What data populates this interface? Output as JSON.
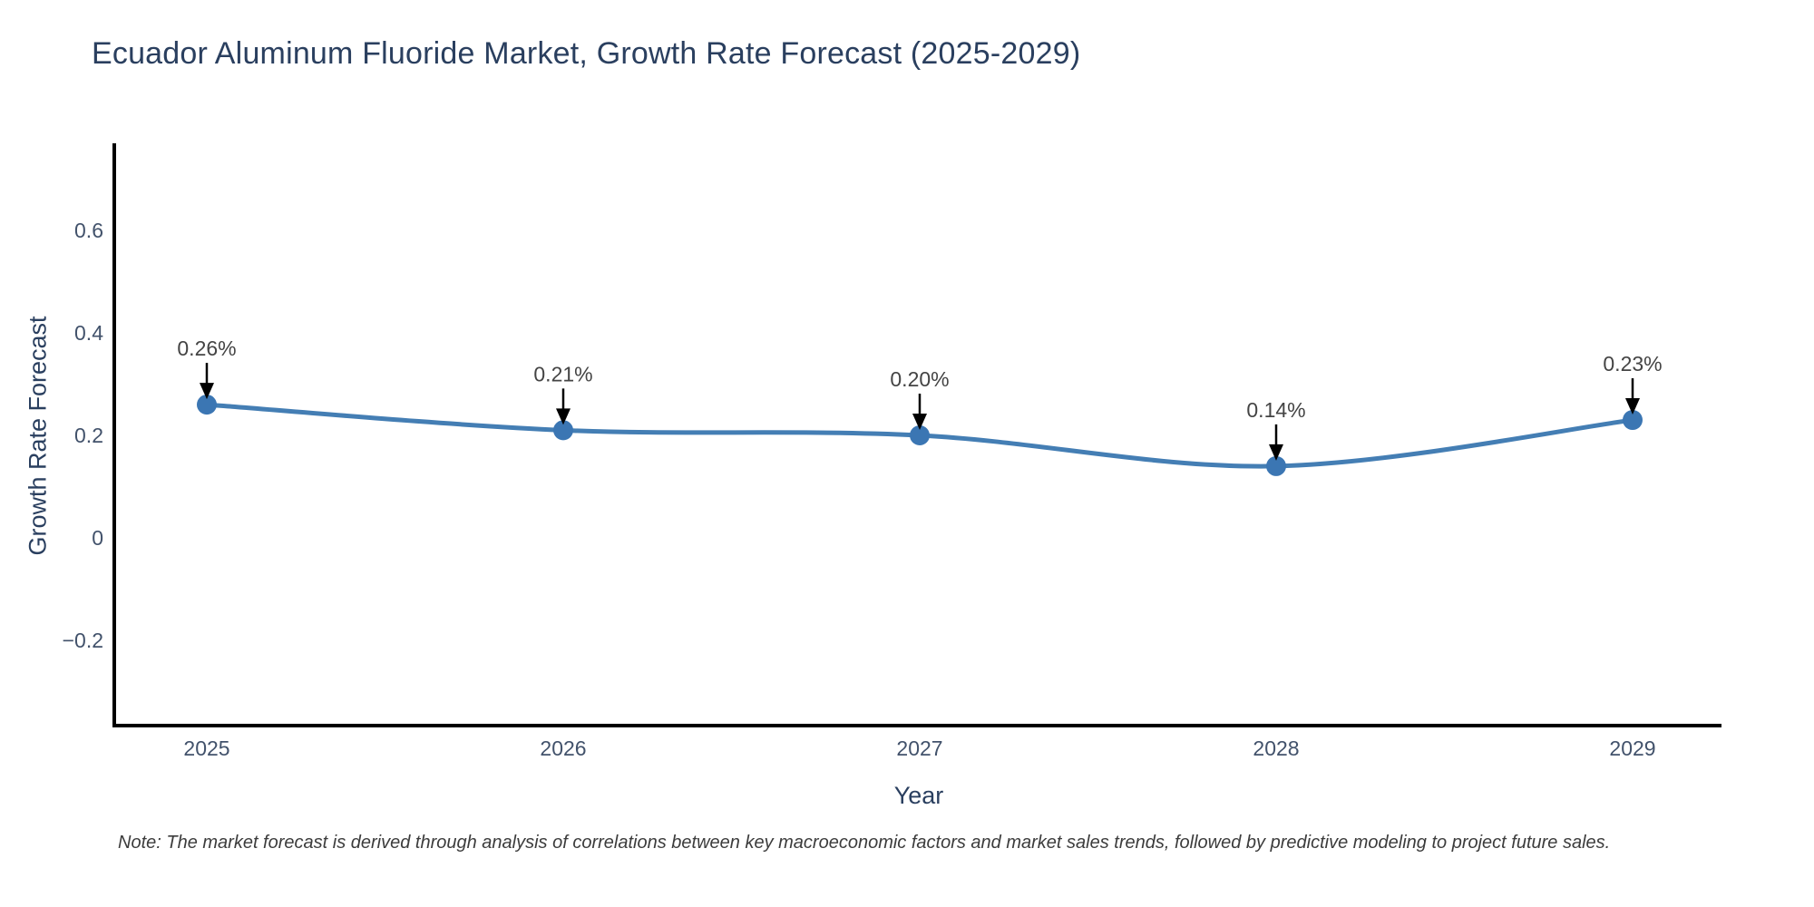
{
  "chart_data": {
    "type": "line",
    "title": "Ecuador Aluminum Fluoride Market, Growth Rate Forecast (2025-2029)",
    "xlabel": "Year",
    "ylabel": "Growth Rate Forecast",
    "categories": [
      "2025",
      "2026",
      "2027",
      "2028",
      "2029"
    ],
    "series": [
      {
        "name": "Growth Rate Forecast",
        "values": [
          0.26,
          0.21,
          0.2,
          0.14,
          0.23
        ],
        "point_labels": [
          "0.26%",
          "0.21%",
          "0.20%",
          "0.14%",
          "0.23%"
        ]
      }
    ],
    "ytick_values": [
      0.6,
      0.4,
      0.2,
      0,
      -0.2
    ],
    "ytick_labels": [
      "0.6",
      "0.4",
      "0.2",
      "0",
      "−0.2"
    ],
    "ylim": [
      -0.37,
      0.77
    ],
    "grid": false,
    "legend_position": "none",
    "line_shape": "spline",
    "annotations_style": "value label with down arrow to each point",
    "colors": {
      "line": "#447EB4",
      "marker": "#3B76B3",
      "axis_line": "#000000",
      "title_text": "#2a3f5f",
      "tick_text": "#42526b",
      "annotation_text": "#444444",
      "arrow": "#000000",
      "background": "#ffffff"
    }
  },
  "footnote": "Note: The market forecast is derived through analysis of correlations between key macroeconomic factors and market sales trends, followed by predictive modeling to project future sales."
}
